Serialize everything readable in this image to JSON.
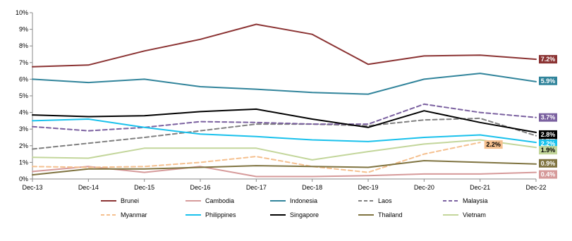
{
  "chart_data": {
    "type": "line",
    "x": [
      "Dec-13",
      "Dec-14",
      "Dec-15",
      "Dec-16",
      "Dec-17",
      "Dec-18",
      "Dec-19",
      "Dec-20",
      "Dec-21",
      "Dec-22"
    ],
    "ylim": [
      0,
      10
    ],
    "y_ticks": [
      "0%",
      "1%",
      "2%",
      "3%",
      "4%",
      "5%",
      "6%",
      "7%",
      "8%",
      "9%",
      "10%"
    ],
    "grid": false,
    "legend_position": "bottom",
    "series": [
      {
        "name": "Brunei",
        "color": "#8B3333",
        "dash": "solid",
        "values": [
          6.75,
          6.85,
          7.7,
          8.4,
          9.3,
          8.7,
          6.9,
          7.4,
          7.45,
          7.2
        ],
        "end_label": "7.2%",
        "end_label_value": 7.2,
        "end_label_text_color": "#ffffff"
      },
      {
        "name": "Cambodia",
        "color": "#D69A9A",
        "dash": "solid",
        "values": [
          0.45,
          0.75,
          0.4,
          0.75,
          0.15,
          0.15,
          0.2,
          0.3,
          0.3,
          0.4
        ],
        "end_label": "0.4%",
        "end_label_value": 0.4,
        "end_label_text_color": "#ffffff"
      },
      {
        "name": "Indonesia",
        "color": "#31849B",
        "dash": "solid",
        "values": [
          6.0,
          5.8,
          6.0,
          5.55,
          5.4,
          5.2,
          5.1,
          6.0,
          6.35,
          5.85
        ],
        "end_label": "5.9%",
        "end_label_value": 5.9,
        "end_label_text_color": "#ffffff"
      },
      {
        "name": "Laos",
        "color": "#808080",
        "dash": "dashed",
        "values": [
          1.8,
          2.15,
          2.5,
          2.9,
          3.3,
          3.3,
          3.2,
          3.55,
          3.65,
          2.6
        ],
        "end_label": "2.6%",
        "end_label_value": 2.6,
        "end_label_text_color": "#ffffff"
      },
      {
        "name": "Malaysia",
        "color": "#7B61A0",
        "dash": "dashed",
        "values": [
          3.15,
          2.9,
          3.1,
          3.45,
          3.4,
          3.3,
          3.3,
          4.5,
          4.0,
          3.7
        ],
        "end_label": "3.7%",
        "end_label_value": 3.7,
        "end_label_text_color": "#ffffff"
      },
      {
        "name": "Myanmar",
        "color": "#F5C08F",
        "dash": "dashed",
        "values": [
          0.75,
          0.7,
          0.75,
          1.0,
          1.35,
          0.75,
          0.4,
          1.5,
          2.2,
          null
        ],
        "end_label": "2.2%",
        "end_label_value": 2.2,
        "end_label_text_color": "#000000"
      },
      {
        "name": "Philippines",
        "color": "#19C1EC",
        "dash": "solid",
        "values": [
          3.5,
          3.6,
          3.1,
          2.7,
          2.55,
          2.35,
          2.25,
          2.5,
          2.65,
          2.2
        ],
        "end_label": "2.2%",
        "end_label_value": 2.2,
        "end_label_text_color": "#ffffff"
      },
      {
        "name": "Singapore",
        "color": "#000000",
        "dash": "solid",
        "values": [
          3.85,
          3.75,
          3.8,
          4.05,
          4.2,
          3.6,
          3.1,
          4.1,
          3.4,
          2.8
        ],
        "end_label": "2.8%",
        "end_label_value": 2.8,
        "end_label_text_color": "#ffffff"
      },
      {
        "name": "Thailand",
        "color": "#7F7340",
        "dash": "solid",
        "values": [
          0.25,
          0.6,
          0.6,
          0.7,
          0.8,
          0.75,
          0.7,
          1.1,
          1.0,
          0.9
        ],
        "end_label": "0.9%",
        "end_label_value": 0.9,
        "end_label_text_color": "#ffffff"
      },
      {
        "name": "Vietnam",
        "color": "#C3D69B",
        "dash": "solid",
        "values": [
          1.3,
          1.25,
          1.85,
          1.85,
          1.85,
          1.15,
          1.65,
          2.1,
          2.35,
          1.9
        ],
        "end_label": "1.9%",
        "end_label_value": 1.9,
        "end_label_text_color": "#000000"
      }
    ]
  }
}
